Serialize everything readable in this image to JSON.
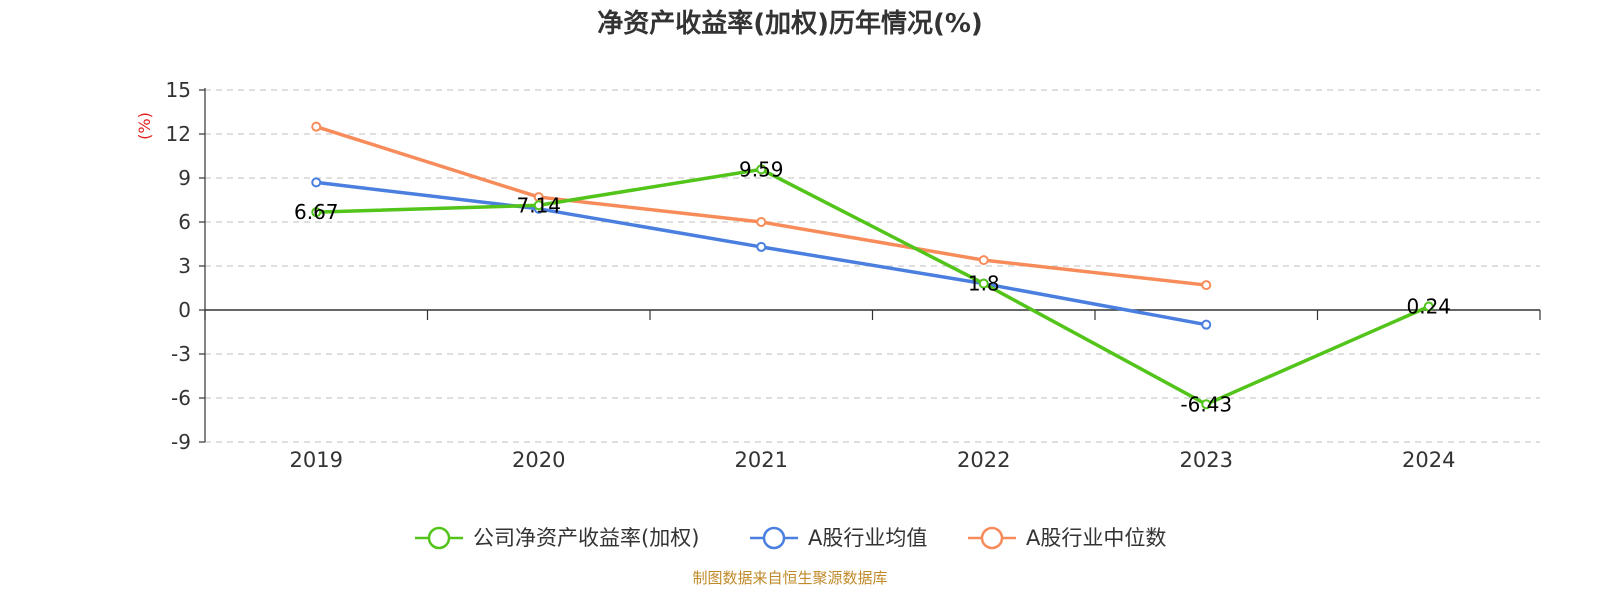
{
  "chart_data": {
    "type": "line",
    "title": "净资产收益率(加权)历年情况(%)",
    "ylabel": "(%)",
    "categories": [
      "2019",
      "2020",
      "2021",
      "2022",
      "2023",
      "2024"
    ],
    "ylim": [
      -9,
      15
    ],
    "yticks": [
      15,
      12,
      9,
      6,
      3,
      0,
      -3,
      -6,
      -9
    ],
    "grid": true,
    "legend_position": "bottom-center",
    "series": [
      {
        "name": "公司净资产收益率(加权)",
        "color": "#52c41a",
        "values": [
          6.67,
          7.14,
          9.59,
          1.8,
          -6.43,
          0.24
        ],
        "labels": [
          "6.67",
          "7.14",
          "9.59",
          "1.8",
          "-6.43",
          "0.24"
        ]
      },
      {
        "name": "A股行业均值",
        "color": "#4a7fe0",
        "values": [
          8.7,
          6.9,
          4.3,
          1.8,
          -1.0,
          null
        ]
      },
      {
        "name": "A股行业中位数",
        "color": "#f78c5a",
        "values": [
          12.5,
          7.7,
          6.0,
          3.4,
          1.7,
          null
        ]
      }
    ],
    "source": "制图数据来自恒生聚源数据库"
  }
}
